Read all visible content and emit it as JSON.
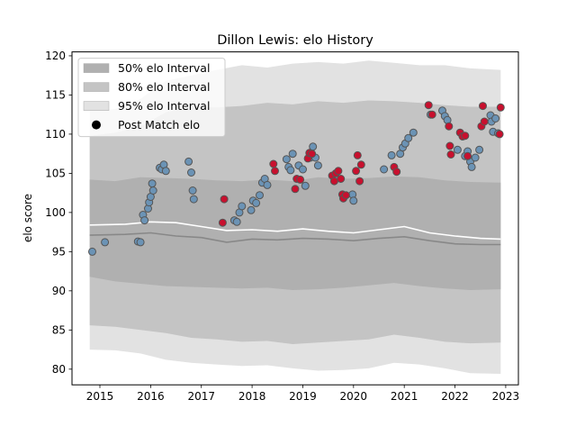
{
  "chart_data": {
    "type": "scatter",
    "title": "Dillon Lewis: elo History",
    "ylabel": "elo score",
    "xlabel": "",
    "xlim": [
      2014.45,
      2023.25
    ],
    "ylim": [
      78,
      120.5
    ],
    "x_ticks": [
      2015,
      2016,
      2017,
      2018,
      2019,
      2020,
      2021,
      2022,
      2023
    ],
    "y_ticks": [
      80,
      85,
      90,
      95,
      100,
      105,
      110,
      115,
      120
    ],
    "grid": false,
    "legend_placement": "top-left",
    "legend": [
      {
        "label": "50% elo Interval",
        "kind": "band",
        "color": "#b0b0b0"
      },
      {
        "label": "80% elo Interval",
        "kind": "band",
        "color": "#c4c4c4"
      },
      {
        "label": "95% elo Interval",
        "kind": "band",
        "color": "#e2e2e2"
      },
      {
        "label": "Post Match elo",
        "kind": "marker",
        "color": "#000000"
      }
    ],
    "colors": {
      "band50": "#b0b0b0",
      "band80": "#c4c4c4",
      "band95": "#e2e2e2",
      "median_line": "#888888",
      "mean_line": "#ffffff",
      "win_marker": "#6b93b5",
      "loss_marker": "#c8102e",
      "marker_edge": "#555555"
    },
    "bands_x": [
      2014.8,
      2015.3,
      2015.8,
      2016.3,
      2016.8,
      2017.3,
      2017.8,
      2018.3,
      2018.8,
      2019.3,
      2019.8,
      2020.3,
      2020.8,
      2021.3,
      2021.8,
      2022.3,
      2022.9
    ],
    "band95": {
      "low": [
        82.5,
        82.4,
        82.0,
        81.2,
        80.8,
        80.6,
        80.4,
        80.5,
        80.1,
        79.8,
        79.9,
        80.1,
        80.8,
        80.6,
        80.1,
        79.5,
        79.4
      ],
      "high": [
        113.0,
        113.2,
        114.5,
        116.8,
        117.5,
        118.2,
        118.8,
        118.5,
        119.0,
        119.2,
        119.0,
        119.4,
        119.1,
        118.8,
        118.8,
        118.4,
        118.2
      ]
    },
    "band80": {
      "low": [
        85.6,
        85.4,
        85.0,
        84.6,
        84.0,
        83.8,
        83.5,
        83.6,
        83.2,
        83.4,
        83.6,
        83.8,
        84.4,
        84.0,
        83.5,
        83.3,
        83.4
      ],
      "high": [
        109.8,
        110.2,
        111.0,
        112.8,
        113.5,
        113.4,
        113.6,
        114.0,
        113.8,
        114.2,
        114.0,
        114.3,
        114.2,
        114.0,
        113.7,
        113.5,
        113.5
      ]
    },
    "band50": {
      "low": [
        91.8,
        91.2,
        90.9,
        90.6,
        90.5,
        90.4,
        90.3,
        90.4,
        90.1,
        90.2,
        90.4,
        90.7,
        91.0,
        90.6,
        90.3,
        90.1,
        90.2
      ],
      "high": [
        104.2,
        104.0,
        104.5,
        104.4,
        104.3,
        104.1,
        104.0,
        104.2,
        104.0,
        104.5,
        104.3,
        104.4,
        104.6,
        104.5,
        104.1,
        103.9,
        103.8
      ]
    },
    "median_line": {
      "x": [
        2014.8,
        2015.5,
        2016.0,
        2016.5,
        2017.0,
        2017.5,
        2018.0,
        2018.5,
        2019.0,
        2019.5,
        2020.0,
        2020.5,
        2021.0,
        2021.5,
        2022.0,
        2022.5,
        2022.9
      ],
      "y": [
        97.1,
        97.2,
        97.4,
        97.0,
        96.8,
        96.2,
        96.6,
        96.5,
        96.7,
        96.6,
        96.4,
        96.7,
        96.9,
        96.4,
        96.0,
        95.9,
        95.9
      ]
    },
    "mean_line": {
      "x": [
        2014.8,
        2015.5,
        2016.0,
        2016.5,
        2017.0,
        2017.5,
        2018.0,
        2018.5,
        2019.0,
        2019.5,
        2020.0,
        2020.5,
        2021.0,
        2021.5,
        2022.0,
        2022.5,
        2022.9
      ],
      "y": [
        98.4,
        98.5,
        98.8,
        98.7,
        98.2,
        97.7,
        97.8,
        97.6,
        97.9,
        97.6,
        97.4,
        97.8,
        98.2,
        97.4,
        97.0,
        96.7,
        96.6
      ]
    },
    "points_win": [
      [
        2014.85,
        95.0
      ],
      [
        2015.1,
        96.2
      ],
      [
        2015.75,
        96.3
      ],
      [
        2015.8,
        96.2
      ],
      [
        2015.85,
        99.7
      ],
      [
        2015.88,
        99.0
      ],
      [
        2015.95,
        100.5
      ],
      [
        2015.97,
        101.3
      ],
      [
        2016.0,
        102.0
      ],
      [
        2016.03,
        103.7
      ],
      [
        2016.05,
        102.8
      ],
      [
        2016.18,
        105.7
      ],
      [
        2016.22,
        105.5
      ],
      [
        2016.26,
        106.1
      ],
      [
        2016.3,
        105.3
      ],
      [
        2016.75,
        106.5
      ],
      [
        2016.8,
        105.1
      ],
      [
        2016.83,
        102.8
      ],
      [
        2016.85,
        101.7
      ],
      [
        2017.65,
        99.0
      ],
      [
        2017.7,
        98.8
      ],
      [
        2017.75,
        100.0
      ],
      [
        2017.8,
        100.8
      ],
      [
        2017.98,
        100.3
      ],
      [
        2018.02,
        101.5
      ],
      [
        2018.08,
        101.2
      ],
      [
        2018.15,
        102.2
      ],
      [
        2018.2,
        103.8
      ],
      [
        2018.25,
        104.3
      ],
      [
        2018.3,
        103.5
      ],
      [
        2018.68,
        106.8
      ],
      [
        2018.72,
        105.8
      ],
      [
        2018.76,
        105.4
      ],
      [
        2018.8,
        107.5
      ],
      [
        2018.92,
        106.0
      ],
      [
        2019.0,
        105.5
      ],
      [
        2019.05,
        103.4
      ],
      [
        2019.15,
        107.0
      ],
      [
        2019.2,
        108.4
      ],
      [
        2019.25,
        107.0
      ],
      [
        2019.3,
        106.0
      ],
      [
        2019.98,
        102.3
      ],
      [
        2020.0,
        101.5
      ],
      [
        2020.6,
        105.5
      ],
      [
        2020.75,
        107.3
      ],
      [
        2020.92,
        107.5
      ],
      [
        2020.97,
        108.3
      ],
      [
        2021.02,
        108.8
      ],
      [
        2021.08,
        109.5
      ],
      [
        2021.18,
        110.2
      ],
      [
        2021.52,
        112.5
      ],
      [
        2021.75,
        113.0
      ],
      [
        2021.8,
        112.3
      ],
      [
        2021.85,
        111.8
      ],
      [
        2022.05,
        108.0
      ],
      [
        2022.2,
        107.2
      ],
      [
        2022.25,
        107.8
      ],
      [
        2022.3,
        106.5
      ],
      [
        2022.33,
        105.8
      ],
      [
        2022.4,
        107.0
      ],
      [
        2022.48,
        108.0
      ],
      [
        2022.7,
        112.4
      ],
      [
        2022.72,
        111.6
      ],
      [
        2022.75,
        110.3
      ],
      [
        2022.8,
        112.0
      ],
      [
        2022.85,
        110.1
      ]
    ],
    "points_loss": [
      [
        2017.45,
        101.7
      ],
      [
        2017.42,
        98.7
      ],
      [
        2018.42,
        106.2
      ],
      [
        2018.45,
        105.3
      ],
      [
        2018.85,
        103.0
      ],
      [
        2018.88,
        104.3
      ],
      [
        2018.95,
        104.2
      ],
      [
        2019.1,
        106.9
      ],
      [
        2019.13,
        107.6
      ],
      [
        2019.18,
        107.5
      ],
      [
        2019.58,
        104.7
      ],
      [
        2019.62,
        104.0
      ],
      [
        2019.65,
        105.0
      ],
      [
        2019.7,
        105.3
      ],
      [
        2019.75,
        104.3
      ],
      [
        2019.78,
        102.3
      ],
      [
        2019.8,
        101.8
      ],
      [
        2019.85,
        102.2
      ],
      [
        2020.05,
        105.3
      ],
      [
        2020.08,
        107.3
      ],
      [
        2020.12,
        104.0
      ],
      [
        2020.15,
        106.1
      ],
      [
        2020.8,
        105.8
      ],
      [
        2020.85,
        105.2
      ],
      [
        2021.48,
        113.7
      ],
      [
        2021.55,
        112.5
      ],
      [
        2021.88,
        111.0
      ],
      [
        2021.9,
        108.5
      ],
      [
        2021.92,
        107.4
      ],
      [
        2022.1,
        110.2
      ],
      [
        2022.15,
        109.7
      ],
      [
        2022.2,
        109.8
      ],
      [
        2022.25,
        107.2
      ],
      [
        2022.52,
        111.0
      ],
      [
        2022.55,
        113.6
      ],
      [
        2022.58,
        111.6
      ],
      [
        2022.9,
        113.4
      ],
      [
        2022.88,
        110.0
      ]
    ]
  }
}
